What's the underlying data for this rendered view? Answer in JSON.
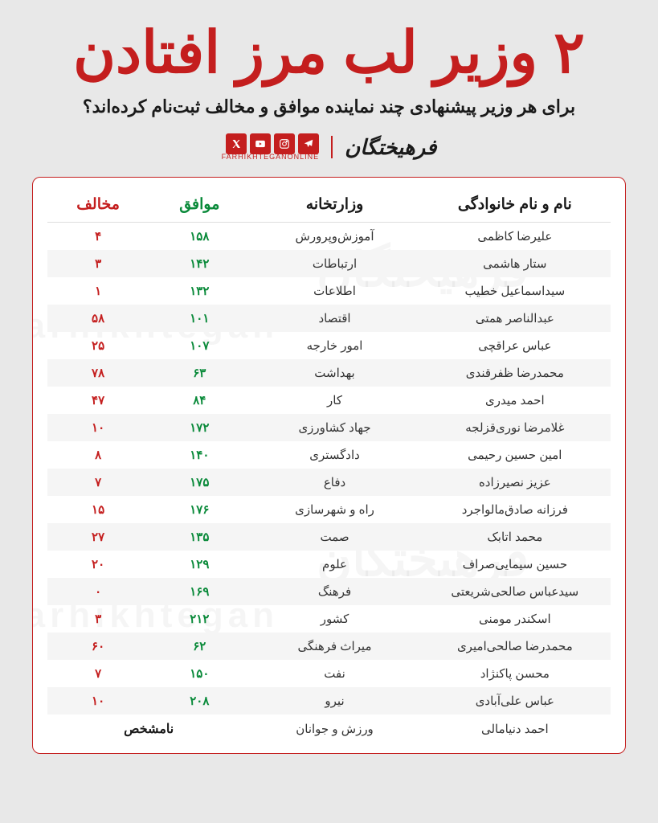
{
  "headline": "۲ وزیر لب مرز افتادن",
  "subheadline": "برای هر وزیر پیشنهادی چند نماینده موافق و مخالف ثبت‌نام کرده‌اند؟",
  "brand": {
    "logo_text": "فرهیختگان",
    "url_text": "FARHIKHTEGANONLINE"
  },
  "watermark_fa": "فرهیختگان",
  "watermark_en": "farhikhtegan",
  "table": {
    "headers": {
      "name": "نام و نام خانوادگی",
      "ministry": "وزارتخانه",
      "agree": "موافق",
      "disagree": "مخالف"
    },
    "unknown_label": "نامشخص",
    "rows": [
      {
        "name": "علیرضا کاظمی",
        "ministry": "آموزش‌وپرورش",
        "agree": "۱۵۸",
        "disagree": "۴"
      },
      {
        "name": "ستار هاشمی",
        "ministry": "ارتباطات",
        "agree": "۱۴۲",
        "disagree": "۳"
      },
      {
        "name": "سیداسماعیل خطیب",
        "ministry": "اطلاعات",
        "agree": "۱۳۲",
        "disagree": "۱"
      },
      {
        "name": "عبدالناصر همتی",
        "ministry": "اقتصاد",
        "agree": "۱۰۱",
        "disagree": "۵۸"
      },
      {
        "name": "عباس عراقچی",
        "ministry": "امور خارجه",
        "agree": "۱۰۷",
        "disagree": "۲۵"
      },
      {
        "name": "محمدرضا ظفرقندی",
        "ministry": "بهداشت",
        "agree": "۶۳",
        "disagree": "۷۸"
      },
      {
        "name": "احمد میدری",
        "ministry": "کار",
        "agree": "۸۴",
        "disagree": "۴۷"
      },
      {
        "name": "غلامرضا نوری‌قزلجه",
        "ministry": "جهاد کشاورزی",
        "agree": "۱۷۲",
        "disagree": "۱۰"
      },
      {
        "name": "امین حسین رحیمی",
        "ministry": "دادگستری",
        "agree": "۱۴۰",
        "disagree": "۸"
      },
      {
        "name": "عزیز نصیرزاده",
        "ministry": "دفاع",
        "agree": "۱۷۵",
        "disagree": "۷"
      },
      {
        "name": "فرزانه صادق‌مالواجرد",
        "ministry": "راه و شهرسازی",
        "agree": "۱۷۶",
        "disagree": "۱۵"
      },
      {
        "name": "محمد اتابک",
        "ministry": "صمت",
        "agree": "۱۳۵",
        "disagree": "۲۷"
      },
      {
        "name": "حسین سیمایی‌صراف",
        "ministry": "علوم",
        "agree": "۱۲۹",
        "disagree": "۲۰"
      },
      {
        "name": "سیدعباس صالحی‌شریعتی",
        "ministry": "فرهنگ",
        "agree": "۱۶۹",
        "disagree": "۰"
      },
      {
        "name": "اسکندر مومنی",
        "ministry": "کشور",
        "agree": "۲۱۲",
        "disagree": "۳"
      },
      {
        "name": "محمدرضا صالحی‌امیری",
        "ministry": "میراث فرهنگی",
        "agree": "۶۲",
        "disagree": "۶۰"
      },
      {
        "name": "محسن پاکنژاد",
        "ministry": "نفت",
        "agree": "۱۵۰",
        "disagree": "۷"
      },
      {
        "name": "عباس علی‌آبادی",
        "ministry": "نیرو",
        "agree": "۲۰۸",
        "disagree": "۱۰"
      },
      {
        "name": "احمد دنیامالی",
        "ministry": "ورزش و جوانان",
        "agree": null,
        "disagree": null
      }
    ]
  },
  "colors": {
    "headline": "#c41e1e",
    "agree": "#0a8a3a",
    "disagree": "#c41e1e",
    "bg": "#e8e8e8",
    "table_border": "#c41e1e"
  }
}
